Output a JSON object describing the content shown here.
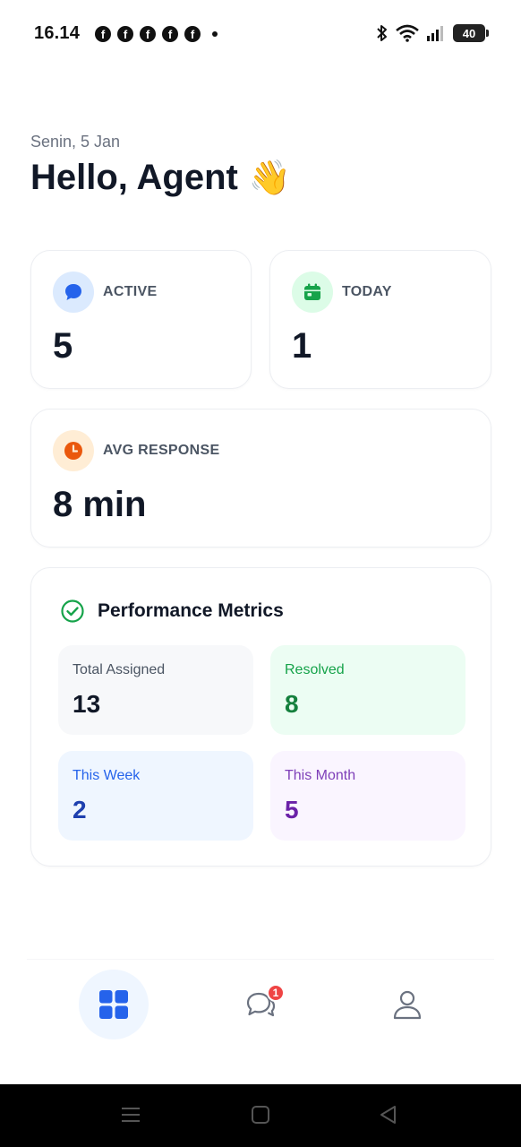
{
  "status_bar": {
    "time": "16.14",
    "notifications": [
      "f",
      "f",
      "f",
      "f",
      "f"
    ],
    "battery": "40",
    "icons": [
      "bluetooth-icon",
      "wifi-icon",
      "signal-icon",
      "battery-icon"
    ]
  },
  "greeting": {
    "date": "Senin, 5 Jan",
    "title": "Hello, Agent",
    "emoji": "👋"
  },
  "stats": {
    "active": {
      "label": "ACTIVE",
      "value": "5",
      "icon": "chat-bubble-icon",
      "color": "#2563eb"
    },
    "today": {
      "label": "TODAY",
      "value": "1",
      "icon": "calendar-icon",
      "color": "#16a34a"
    },
    "avg_response": {
      "label": "AVG RESPONSE",
      "value": "8 min",
      "icon": "clock-icon",
      "color": "#ea580c"
    }
  },
  "performance": {
    "title": "Performance Metrics",
    "icon": "check-circle-icon",
    "metrics": {
      "total_assigned": {
        "label": "Total Assigned",
        "value": "13"
      },
      "resolved": {
        "label": "Resolved",
        "value": "8"
      },
      "this_week": {
        "label": "This Week",
        "value": "2"
      },
      "this_month": {
        "label": "This Month",
        "value": "5"
      }
    }
  },
  "bottom_nav": {
    "items": [
      {
        "name": "dashboard",
        "icon": "grid-icon",
        "active": true
      },
      {
        "name": "chats",
        "icon": "chat-bubbles-icon",
        "badge": "1"
      },
      {
        "name": "profile",
        "icon": "user-icon"
      }
    ]
  },
  "colors": {
    "primary": "#2563eb",
    "success": "#16a34a",
    "warning": "#ea580c",
    "purple": "#7e3fb8",
    "badge": "#ef4444"
  }
}
